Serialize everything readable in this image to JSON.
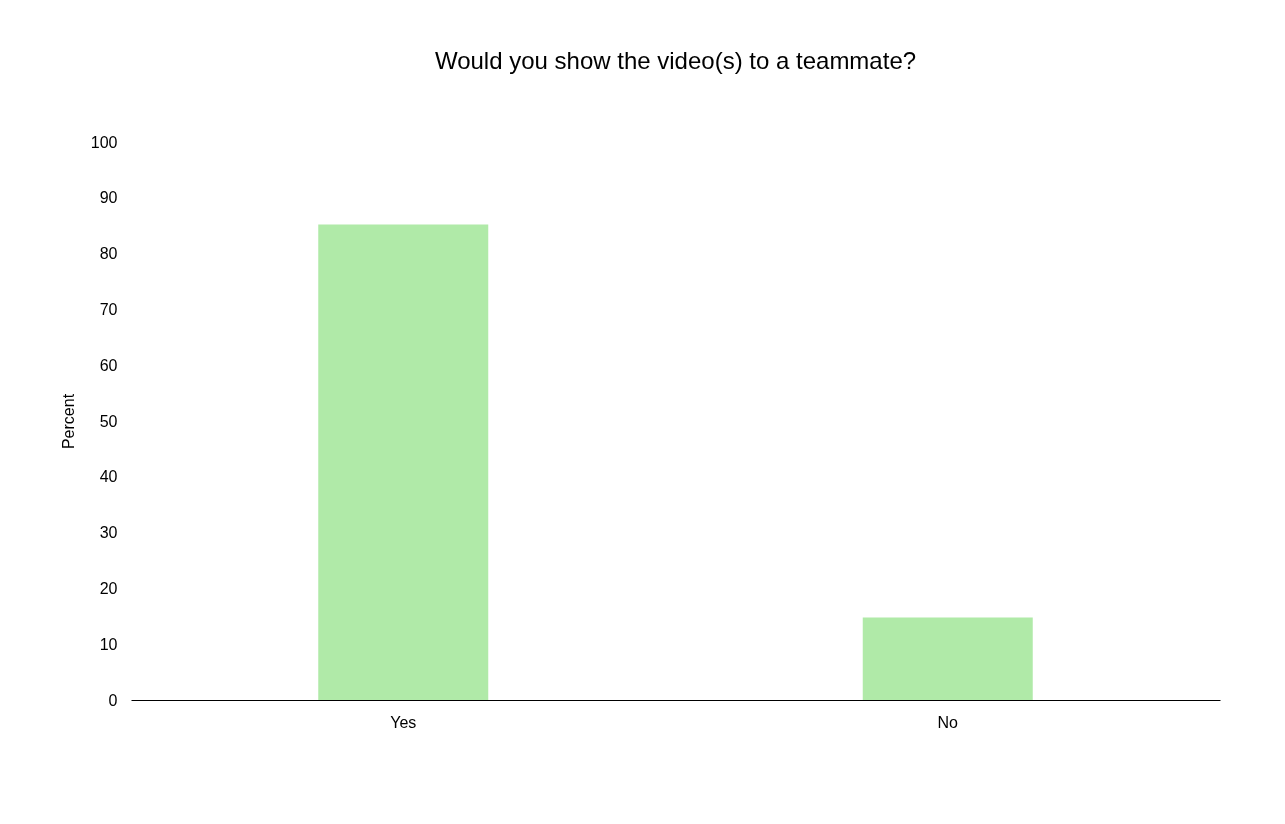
{
  "chart_data": {
    "type": "bar",
    "title": "Would you show the video(s) to a teammate?",
    "ylabel": "Percent",
    "categories": [
      "Yes",
      "No"
    ],
    "values": [
      85.2,
      14.8
    ],
    "color": "#b0eaa8",
    "ylim": [
      0,
      100
    ],
    "yticks": [
      0,
      10,
      20,
      30,
      40,
      50,
      60,
      70,
      80,
      90,
      100
    ],
    "grid": false
  }
}
